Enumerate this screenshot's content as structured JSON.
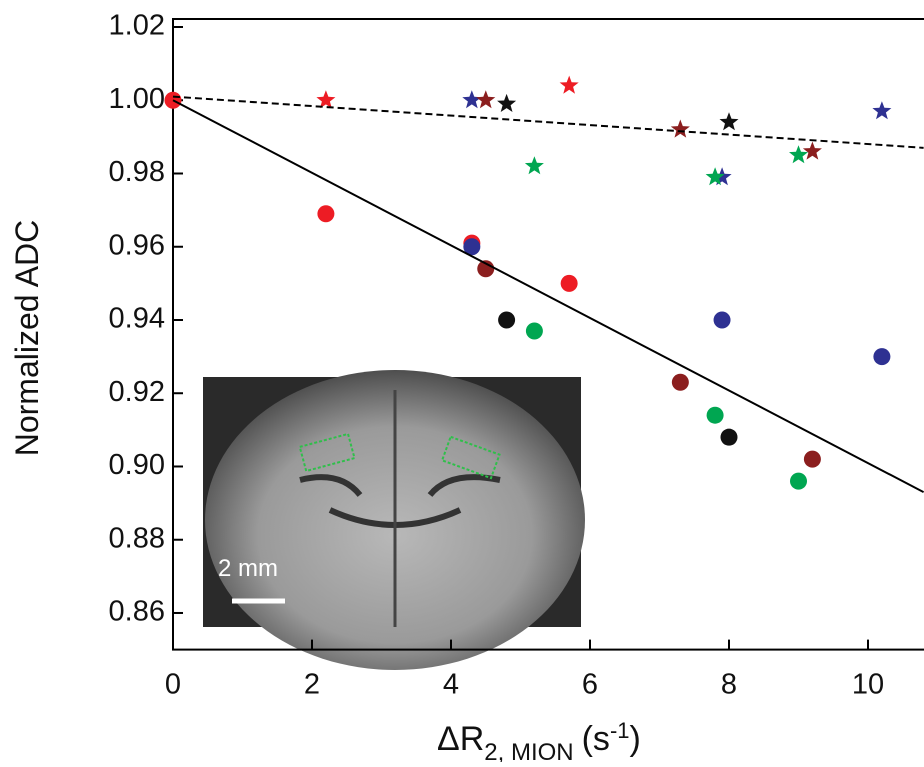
{
  "chart_data": {
    "type": "scatter",
    "y_label": "Normalized ADC",
    "x_label": {
      "main": "ΔR",
      "sub": "2, MION",
      "unit": "(s",
      "sup": "-1",
      "close": ")"
    },
    "inset_label": "2 mm",
    "xlim": [
      0,
      10.8
    ],
    "ylim": [
      0.85,
      1.02
    ],
    "xticks": [
      0,
      2,
      4,
      6,
      8,
      10
    ],
    "yticks": [
      1.02,
      {
        "value": 1.0,
        "label": "1.00"
      },
      0.98,
      0.96,
      0.94,
      0.92,
      {
        "value": 0.9,
        "label": "0.90"
      },
      0.88,
      0.86
    ],
    "series": [
      {
        "color": "#ed1c24",
        "marker": "circle",
        "x": [
          0,
          2.2,
          4.3,
          5.7
        ],
        "values": [
          1.0,
          0.969,
          0.961,
          0.95
        ]
      },
      {
        "color": "#2e3192",
        "marker": "circle",
        "x": [
          4.3,
          7.9,
          10.2
        ],
        "values": [
          0.96,
          0.94,
          0.93
        ]
      },
      {
        "color": "#8b1e1e",
        "marker": "circle",
        "x": [
          4.5,
          7.3,
          9.2
        ],
        "values": [
          0.954,
          0.923,
          0.902
        ]
      },
      {
        "color": "#111111",
        "marker": "circle",
        "x": [
          4.8,
          8.0
        ],
        "values": [
          0.94,
          0.908
        ]
      },
      {
        "color": "#00a651",
        "marker": "circle",
        "x": [
          5.2,
          7.8,
          9.0
        ],
        "values": [
          0.937,
          0.914,
          0.896
        ]
      },
      {
        "color": "#ed1c24",
        "marker": "star",
        "x": [
          2.2,
          5.7
        ],
        "values": [
          1.0,
          1.004
        ]
      },
      {
        "color": "#2e3192",
        "marker": "star",
        "x": [
          4.3,
          7.9,
          10.2
        ],
        "values": [
          1.0,
          0.979,
          0.997
        ]
      },
      {
        "color": "#8b1e1e",
        "marker": "star",
        "x": [
          4.5,
          7.3,
          9.2
        ],
        "values": [
          1.0,
          0.992,
          0.986
        ]
      },
      {
        "color": "#111111",
        "marker": "star",
        "x": [
          4.8,
          8.0
        ],
        "values": [
          0.999,
          0.994
        ]
      },
      {
        "color": "#00a651",
        "marker": "star",
        "x": [
          5.2,
          7.8,
          9.0
        ],
        "values": [
          0.982,
          0.979,
          0.985
        ]
      },
      {
        "color": "#000000",
        "line": "solid",
        "x": [
          0,
          10.8
        ],
        "values": [
          1.0,
          0.893
        ]
      },
      {
        "color": "#000000",
        "line": "dashed",
        "x": [
          0,
          10.8
        ],
        "values": [
          1.001,
          0.987
        ]
      }
    ]
  }
}
